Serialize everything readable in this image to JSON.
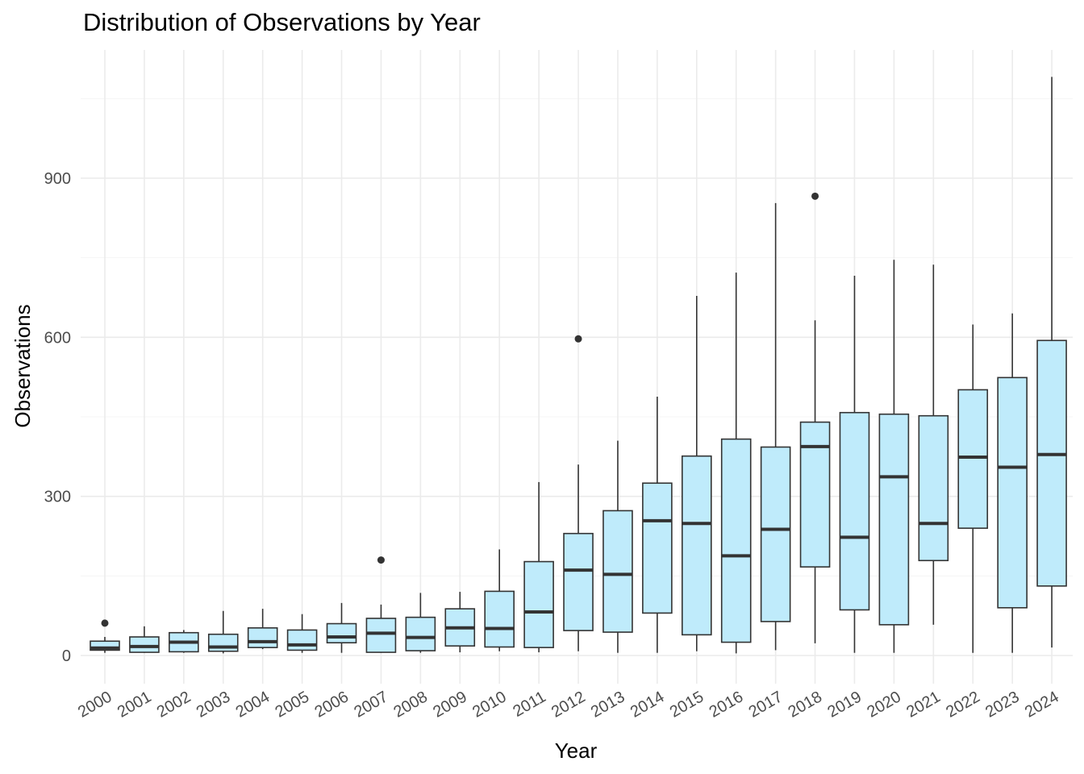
{
  "chart_data": {
    "type": "boxplot",
    "title": "Distribution of Observations by Year",
    "xlabel": "Year",
    "ylabel": "Observations",
    "ylim": [
      -55,
      1110
    ],
    "y_ticks": [
      0,
      300,
      600,
      900
    ],
    "grid": true,
    "legend": "none",
    "colors": {
      "box_fill": "#BFEBFB",
      "box_stroke": "#333333",
      "grid_major": "#EBEBEB",
      "grid_minor": "#F4F4F4",
      "tick_text": "#4D4D4D"
    },
    "categories": [
      "2000",
      "2001",
      "2002",
      "2003",
      "2004",
      "2005",
      "2006",
      "2007",
      "2008",
      "2009",
      "2010",
      "2011",
      "2012",
      "2013",
      "2014",
      "2015",
      "2016",
      "2017",
      "2018",
      "2019",
      "2020",
      "2021",
      "2022",
      "2023",
      "2024"
    ],
    "boxes": [
      {
        "year": "2000",
        "min": 5,
        "q1": 10,
        "median": 14,
        "q3": 27,
        "max": 35,
        "outliers": [
          61
        ]
      },
      {
        "year": "2001",
        "min": 5,
        "q1": 6,
        "median": 17,
        "q3": 35,
        "max": 55,
        "outliers": []
      },
      {
        "year": "2002",
        "min": 5,
        "q1": 7,
        "median": 25,
        "q3": 43,
        "max": 48,
        "outliers": []
      },
      {
        "year": "2003",
        "min": 4,
        "q1": 8,
        "median": 16,
        "q3": 40,
        "max": 84,
        "outliers": []
      },
      {
        "year": "2004",
        "min": 12,
        "q1": 15,
        "median": 26,
        "q3": 52,
        "max": 88,
        "outliers": []
      },
      {
        "year": "2005",
        "min": 5,
        "q1": 10,
        "median": 20,
        "q3": 48,
        "max": 78,
        "outliers": []
      },
      {
        "year": "2006",
        "min": 5,
        "q1": 24,
        "median": 35,
        "q3": 60,
        "max": 99,
        "outliers": []
      },
      {
        "year": "2007",
        "min": 5,
        "q1": 6,
        "median": 42,
        "q3": 70,
        "max": 96,
        "outliers": [
          180
        ]
      },
      {
        "year": "2008",
        "min": 5,
        "q1": 9,
        "median": 34,
        "q3": 72,
        "max": 118,
        "outliers": []
      },
      {
        "year": "2009",
        "min": 6,
        "q1": 18,
        "median": 52,
        "q3": 88,
        "max": 120,
        "outliers": []
      },
      {
        "year": "2010",
        "min": 8,
        "q1": 16,
        "median": 51,
        "q3": 121,
        "max": 200,
        "outliers": []
      },
      {
        "year": "2011",
        "min": 6,
        "q1": 15,
        "median": 82,
        "q3": 177,
        "max": 327,
        "outliers": []
      },
      {
        "year": "2012",
        "min": 8,
        "q1": 47,
        "median": 161,
        "q3": 230,
        "max": 360,
        "outliers": [
          597
        ]
      },
      {
        "year": "2013",
        "min": 5,
        "q1": 44,
        "median": 153,
        "q3": 273,
        "max": 405,
        "outliers": []
      },
      {
        "year": "2014",
        "min": 5,
        "q1": 80,
        "median": 254,
        "q3": 325,
        "max": 488,
        "outliers": []
      },
      {
        "year": "2015",
        "min": 8,
        "q1": 39,
        "median": 249,
        "q3": 376,
        "max": 678,
        "outliers": []
      },
      {
        "year": "2016",
        "min": 4,
        "q1": 25,
        "median": 188,
        "q3": 408,
        "max": 722,
        "outliers": []
      },
      {
        "year": "2017",
        "min": 10,
        "q1": 64,
        "median": 238,
        "q3": 393,
        "max": 853,
        "outliers": []
      },
      {
        "year": "2018",
        "min": 23,
        "q1": 167,
        "median": 394,
        "q3": 440,
        "max": 632,
        "outliers": [
          866
        ]
      },
      {
        "year": "2019",
        "min": 5,
        "q1": 86,
        "median": 223,
        "q3": 458,
        "max": 716,
        "outliers": []
      },
      {
        "year": "2020",
        "min": 5,
        "q1": 58,
        "median": 337,
        "q3": 455,
        "max": 746,
        "outliers": []
      },
      {
        "year": "2021",
        "min": 58,
        "q1": 179,
        "median": 249,
        "q3": 452,
        "max": 737,
        "outliers": []
      },
      {
        "year": "2022",
        "min": 5,
        "q1": 240,
        "median": 374,
        "q3": 501,
        "max": 624,
        "outliers": []
      },
      {
        "year": "2023",
        "min": 5,
        "q1": 90,
        "median": 355,
        "q3": 524,
        "max": 645,
        "outliers": []
      },
      {
        "year": "2024",
        "min": 15,
        "q1": 131,
        "median": 379,
        "q3": 594,
        "max": 1091,
        "outliers": []
      }
    ]
  }
}
